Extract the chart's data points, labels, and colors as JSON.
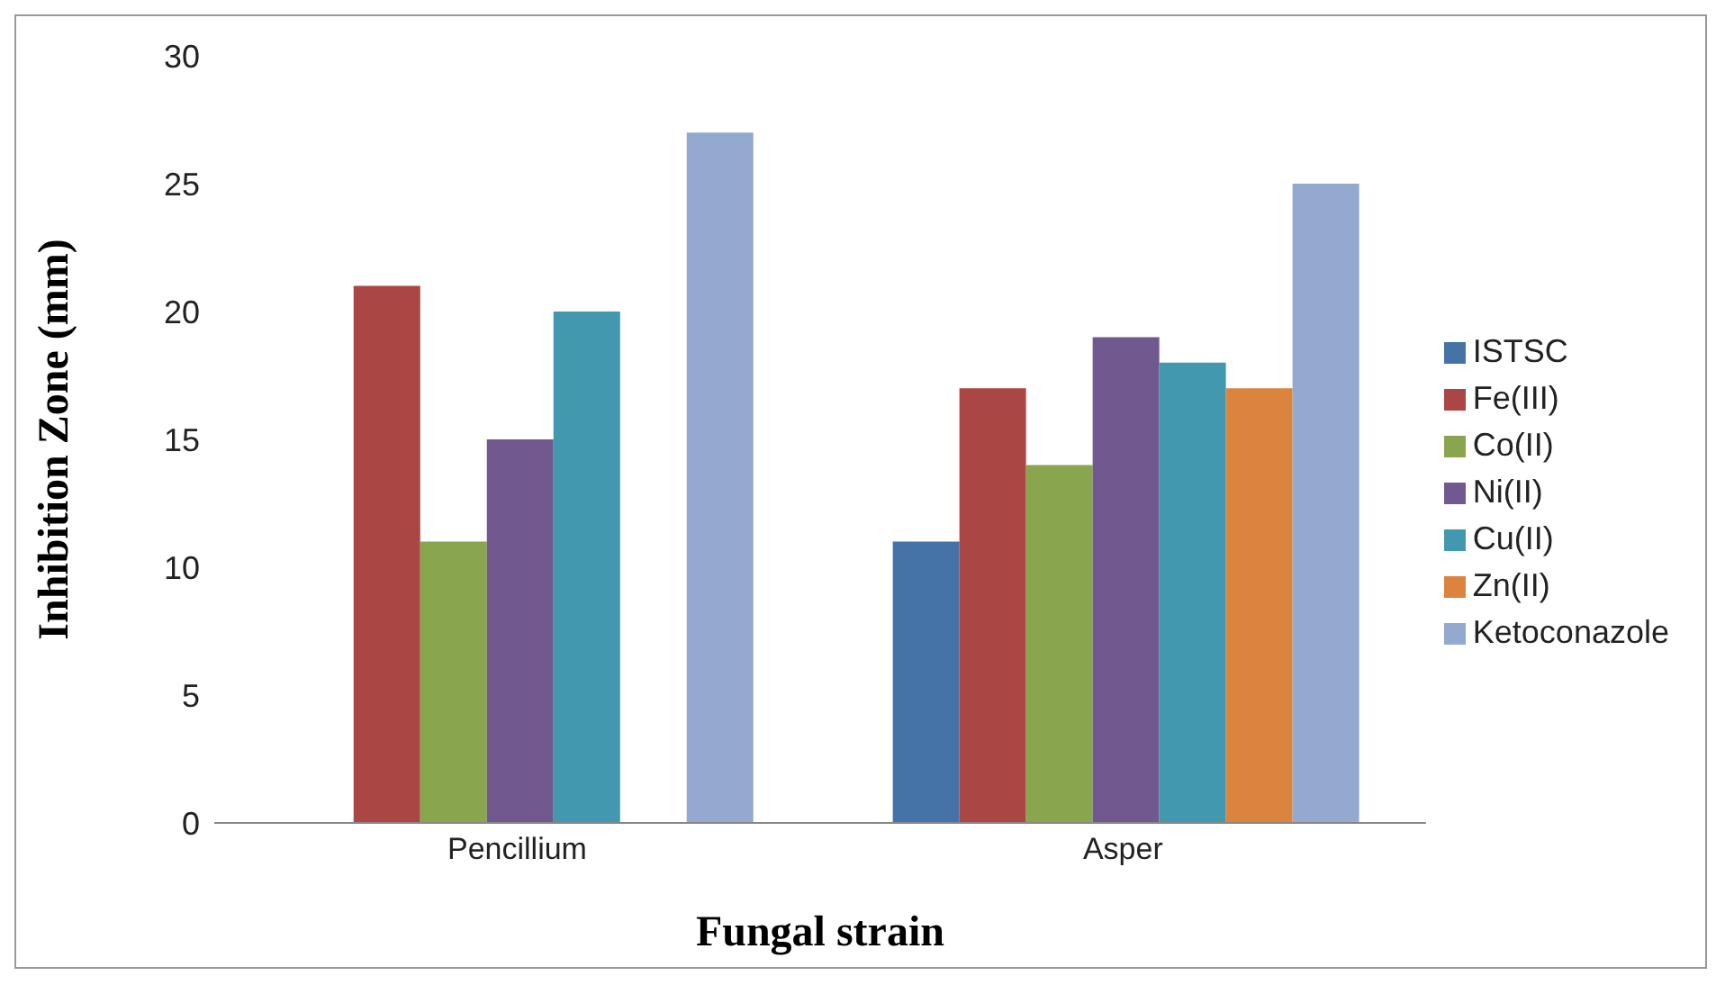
{
  "chart_data": {
    "type": "bar",
    "xlabel": "Fungal strain",
    "ylabel": "Inhibition Zone (mm)",
    "categories": [
      "Pencillium",
      "Asper"
    ],
    "series": [
      {
        "name": "ISTSC",
        "color": "#4572a7",
        "values": [
          null,
          11
        ]
      },
      {
        "name": "Fe(III)",
        "color": "#aa4643",
        "values": [
          21,
          17
        ]
      },
      {
        "name": "Co(II)",
        "color": "#89a54e",
        "values": [
          11,
          14
        ]
      },
      {
        "name": "Ni(II)",
        "color": "#71588f",
        "values": [
          15,
          19
        ]
      },
      {
        "name": "Cu(II)",
        "color": "#4198af",
        "values": [
          20,
          18
        ]
      },
      {
        "name": "Zn(II)",
        "color": "#db843d",
        "values": [
          null,
          17
        ]
      },
      {
        "name": "Ketoconazole",
        "color": "#93a9cf",
        "values": [
          27,
          25
        ]
      }
    ],
    "ylim": [
      0,
      30
    ],
    "yticks": [
      0,
      5,
      10,
      15,
      20,
      25,
      30
    ],
    "grid": false,
    "legend": "right"
  }
}
